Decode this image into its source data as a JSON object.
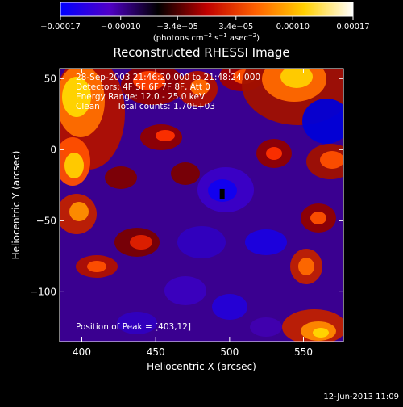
{
  "colorbar": {
    "tick_labels": [
      "−0.00017",
      "−0.00010",
      "−3.4e−05",
      "3.4e−05",
      "0.00010",
      "0.00017"
    ],
    "tick_values": [
      -0.00017,
      -0.0001,
      -3.4e-05,
      3.4e-05,
      0.0001,
      0.00017
    ],
    "range": [
      -0.00017,
      0.00017
    ],
    "units_prefix": "(photons cm",
    "units_exp1": "−2",
    "units_mid": " s",
    "units_exp2": "−1",
    "units_mid2": " asec",
    "units_exp3": "−2",
    "units_suffix": ")",
    "colors": [
      "#0000ff",
      "#5000c8",
      "#000000",
      "#c00000",
      "#ff6000",
      "#ffd000",
      "#ffffff"
    ]
  },
  "chart_data": {
    "type": "heatmap",
    "title": "Reconstructed RHESSI Image",
    "xlabel": "Heliocentric X (arcsec)",
    "ylabel": "Heliocentric Y (arcsec)",
    "xlim": [
      385,
      577
    ],
    "ylim": [
      -135,
      57
    ],
    "x_ticks": [
      400,
      450,
      500,
      550
    ],
    "y_ticks": [
      50,
      0,
      -50,
      -100
    ],
    "x_tick_labels": [
      "400",
      "450",
      "500",
      "550"
    ],
    "y_tick_labels": [
      "50",
      "0",
      "−50",
      "−100"
    ],
    "annotations": [
      "28-Sep-2003 21:46:20.000 to 21:48:24.000",
      "Detectors: 4F 5F 6F 7F 8F, Att 0",
      "Energy Range: 12.0 - 25.0 keV",
      "Clean",
      "Total counts: 1.70E+03"
    ],
    "peak_label": "Position of Peak = [403,12]",
    "peak_position": [
      403,
      12
    ],
    "marker_position": [
      495,
      -31
    ]
  },
  "footer": {
    "date": "12-Jun-2013 11:09"
  }
}
